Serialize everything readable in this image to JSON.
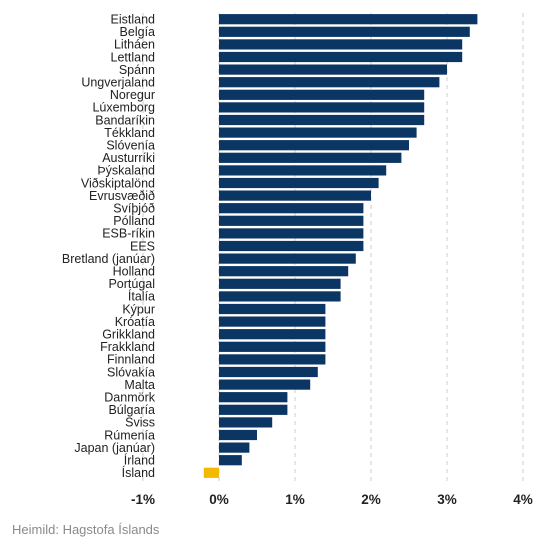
{
  "colors": {
    "bar": "#0b3563",
    "highlight": "#f5b800",
    "grid": "#cccccc",
    "text": "#222222",
    "source": "#8a8a8a"
  },
  "source": "Heimild: Hagstofa Íslands",
  "chart_data": {
    "type": "bar",
    "orientation": "horizontal",
    "categories": [
      "Eistland",
      "Belgía",
      "Litháen",
      "Lettland",
      "Spánn",
      "Ungverjaland",
      "Noregur",
      "Lúxemborg",
      "Bandaríkin",
      "Tékkland",
      "Slóvenía",
      "Austurríki",
      "Þýskaland",
      "Viðskiptalönd",
      "Evrusvæðið",
      "Svíþjóð",
      "Pólland",
      "ESB-ríkin",
      "EES",
      "Bretland (janúar)",
      "Holland",
      "Portúgal",
      "Ítalía",
      "Kýpur",
      "Króatía",
      "Grikkland",
      "Frakkland",
      "Finnland",
      "Slóvakía",
      "Malta",
      "Danmörk",
      "Búlgaría",
      "Sviss",
      "Rúmenía",
      "Japan (janúar)",
      "Írland",
      "Ísland"
    ],
    "values": [
      3.4,
      3.3,
      3.2,
      3.2,
      3.0,
      2.9,
      2.7,
      2.7,
      2.7,
      2.6,
      2.5,
      2.4,
      2.2,
      2.1,
      2.0,
      1.9,
      1.9,
      1.9,
      1.9,
      1.8,
      1.7,
      1.6,
      1.6,
      1.4,
      1.4,
      1.4,
      1.4,
      1.4,
      1.3,
      1.2,
      0.9,
      0.9,
      0.7,
      0.5,
      0.4,
      0.3,
      -0.2
    ],
    "highlight": "Ísland",
    "xlim": [
      -1,
      4
    ],
    "xticks": [
      "-1%",
      "0%",
      "1%",
      "2%",
      "3%",
      "4%"
    ],
    "xtick_values": [
      -1,
      0,
      1,
      2,
      3,
      4
    ],
    "grid": "vertical dashed",
    "title": "",
    "xlabel": "",
    "ylabel": ""
  }
}
